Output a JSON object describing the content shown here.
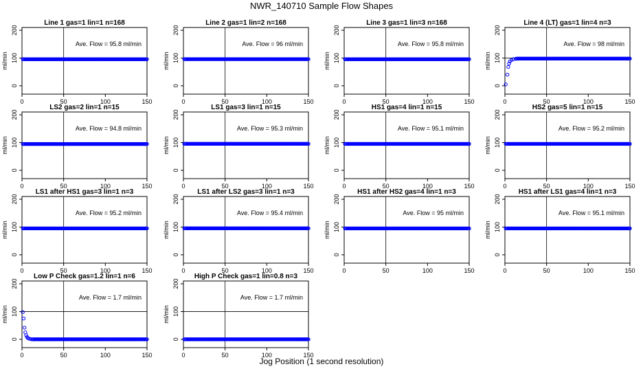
{
  "title": "NWR_140710  Sample Flow Shapes",
  "xlabel": "Jog Position (1 second resolution)",
  "chart_data": {
    "type": "scatter",
    "ylabel": "ml/min",
    "xlim": [
      0,
      150
    ],
    "ylim": [
      -30,
      210
    ],
    "x_ticks": [
      0,
      50,
      100,
      150
    ],
    "y_ticks": [
      0,
      100,
      200
    ],
    "marker_color": "#0000ff",
    "vline_x": 50,
    "hline_y": 100,
    "panels": [
      {
        "title": "Line 1 gas=1 lin=1 n=168",
        "annotation": "Ave. Flow = 95.8  ml/min",
        "shape": "flat",
        "level": 95.8
      },
      {
        "title": "Line 2 gas=1 lin=2 n=168",
        "annotation": "Ave. Flow = 96  ml/min",
        "shape": "flat",
        "level": 96
      },
      {
        "title": "Line 3 gas=1 lin=3 n=168",
        "annotation": "Ave. Flow = 95.8  ml/min",
        "shape": "flat",
        "level": 95.8
      },
      {
        "title": "Line 4 (LT) gas=1 lin=4 n=3",
        "annotation": "Ave. Flow = 98  ml/min",
        "shape": "rise",
        "level": 98,
        "early_points": [
          [
            1,
            5
          ],
          [
            3,
            40
          ],
          [
            4,
            68
          ],
          [
            5,
            80
          ],
          [
            6,
            88
          ],
          [
            8,
            93
          ],
          [
            10,
            96
          ],
          [
            13,
            97
          ]
        ]
      },
      {
        "title": "LS2 gas=2 lin=1 n=15",
        "annotation": "Ave. Flow = 94.8  ml/min",
        "shape": "flat",
        "level": 94.8
      },
      {
        "title": "LS1 gas=3 lin=1 n=15",
        "annotation": "Ave. Flow = 95.3  ml/min",
        "shape": "flat",
        "level": 95.3
      },
      {
        "title": "HS1 gas=4 lin=1 n=15",
        "annotation": "Ave. Flow = 95.1  ml/min",
        "shape": "flat",
        "level": 95.1
      },
      {
        "title": "HS2 gas=5 lin=1 n=15",
        "annotation": "Ave. Flow = 95.2  ml/min",
        "shape": "flat",
        "level": 95.2
      },
      {
        "title": "LS1 after HS1 gas=3 lin=1 n=3",
        "annotation": "Ave. Flow = 95.2  ml/min",
        "shape": "flat",
        "level": 95.2
      },
      {
        "title": "LS1 after LS2 gas=3 lin=1 n=3",
        "annotation": "Ave. Flow = 95.4  ml/min",
        "shape": "flat",
        "level": 95.4
      },
      {
        "title": "HS1 after HS2 gas=4 lin=1 n=3",
        "annotation": "Ave. Flow = 95  ml/min",
        "shape": "flat",
        "level": 95
      },
      {
        "title": "HS1 after LS1 gas=4 lin=1 n=3",
        "annotation": "Ave. Flow = 95.1  ml/min",
        "shape": "flat",
        "level": 95.1
      },
      {
        "title": "Low P Check gas=1.2 lin=1 n=6",
        "annotation": "Ave. Flow = 1.7  ml/min",
        "shape": "decay",
        "level": 0,
        "early_points": [
          [
            1,
            98
          ],
          [
            2,
            75
          ],
          [
            3,
            42
          ],
          [
            4,
            25
          ],
          [
            5,
            15
          ],
          [
            6,
            8
          ],
          [
            7,
            5
          ],
          [
            8,
            3
          ],
          [
            10,
            1
          ],
          [
            12,
            0
          ]
        ]
      },
      {
        "title": "High P Check gas=1 lin=0.8 n=3",
        "annotation": "Ave. Flow = 1.7  ml/min",
        "shape": "flat",
        "level": 0
      }
    ]
  }
}
